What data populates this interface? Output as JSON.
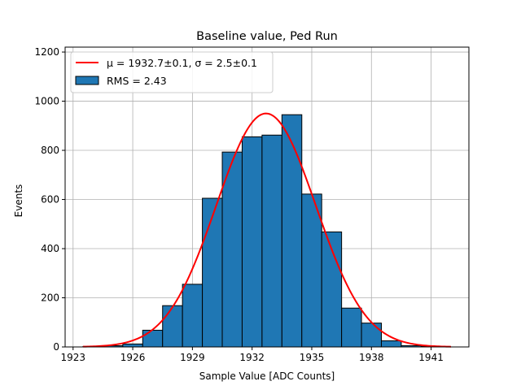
{
  "chart_data": {
    "type": "bar",
    "title": "Baseline value, Ped Run",
    "xlabel": "Sample Value [ADC Counts]",
    "ylabel": "Events",
    "xlim": [
      1922.6,
      1942.9
    ],
    "ylim": [
      0,
      1220
    ],
    "xticks": [
      1923,
      1926,
      1929,
      1932,
      1935,
      1938,
      1941
    ],
    "yticks": [
      0,
      200,
      400,
      600,
      800,
      1000,
      1200
    ],
    "grid": true,
    "bar_color": "#1f77b4",
    "fit_color": "#ff0000",
    "bins": [
      {
        "left": 1923.5,
        "right": 1924.5,
        "value": 2
      },
      {
        "left": 1924.5,
        "right": 1925.5,
        "value": 5
      },
      {
        "left": 1925.5,
        "right": 1926.5,
        "value": 12
      },
      {
        "left": 1926.5,
        "right": 1927.5,
        "value": 68
      },
      {
        "left": 1927.5,
        "right": 1928.5,
        "value": 168
      },
      {
        "left": 1928.5,
        "right": 1929.5,
        "value": 255
      },
      {
        "left": 1929.5,
        "right": 1930.5,
        "value": 605
      },
      {
        "left": 1930.5,
        "right": 1931.5,
        "value": 793
      },
      {
        "left": 1931.5,
        "right": 1932.5,
        "value": 855
      },
      {
        "left": 1932.5,
        "right": 1933.5,
        "value": 862
      },
      {
        "left": 1933.5,
        "right": 1934.5,
        "value": 945
      },
      {
        "left": 1934.5,
        "right": 1935.5,
        "value": 622
      },
      {
        "left": 1935.5,
        "right": 1936.5,
        "value": 468
      },
      {
        "left": 1936.5,
        "right": 1937.5,
        "value": 158
      },
      {
        "left": 1937.5,
        "right": 1938.5,
        "value": 97
      },
      {
        "left": 1938.5,
        "right": 1939.5,
        "value": 25
      },
      {
        "left": 1939.5,
        "right": 1940.5,
        "value": 5
      },
      {
        "left": 1940.5,
        "right": 1941.5,
        "value": 2
      }
    ],
    "fit": {
      "mu": 1932.7,
      "sigma": 2.5,
      "amplitude": 950,
      "x_range": [
        1923.5,
        1942.0
      ]
    },
    "legend": {
      "position": "top-left",
      "entries": [
        {
          "label": "μ = 1932.7±0.1, σ = 2.5±0.1",
          "kind": "line"
        },
        {
          "label": "RMS = 2.43",
          "kind": "patch"
        }
      ]
    }
  }
}
